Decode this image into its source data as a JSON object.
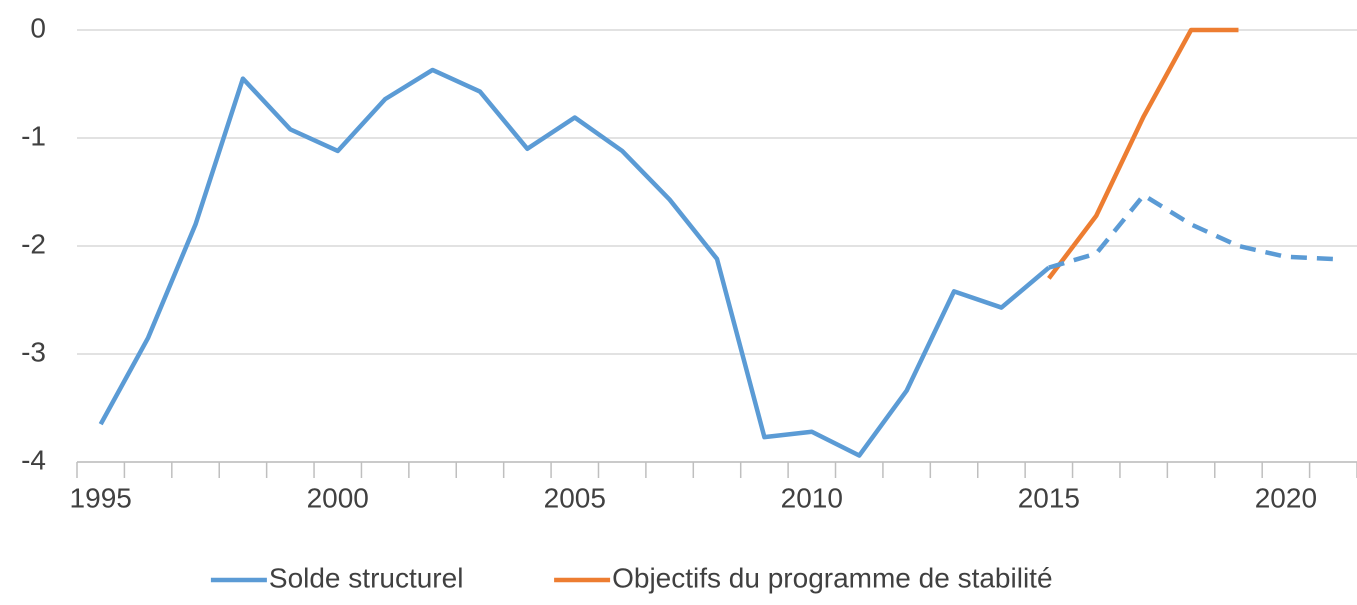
{
  "chart_data": {
    "type": "line",
    "categories": [
      "1995",
      null,
      null,
      null,
      null,
      "2000",
      null,
      null,
      null,
      null,
      "2005",
      null,
      null,
      null,
      null,
      "2010",
      null,
      null,
      null,
      null,
      "2015",
      null,
      null,
      null,
      null,
      "2020",
      null
    ],
    "series": [
      {
        "name": "Solde structurel",
        "color": "#5b9bd5",
        "values": [
          -3.65,
          -2.85,
          -1.8,
          -0.45,
          -0.92,
          -1.12,
          -0.64,
          -0.37,
          -0.57,
          -1.1,
          -0.81,
          -1.12,
          -1.57,
          -2.12,
          -3.77,
          -3.72,
          -3.94,
          -3.34,
          -2.42,
          -2.57,
          -2.2,
          null,
          null,
          null,
          null,
          null,
          null
        ]
      },
      {
        "name": "Objectifs du programme de stabilité",
        "color": "#ed7d31",
        "values": [
          null,
          null,
          null,
          null,
          null,
          null,
          null,
          null,
          null,
          null,
          null,
          null,
          null,
          null,
          null,
          null,
          null,
          null,
          null,
          null,
          -2.3,
          -1.72,
          -0.8,
          0,
          0,
          null,
          null
        ]
      },
      {
        "color": "#5b9bd5",
        "dashed": true,
        "values": [
          null,
          null,
          null,
          null,
          null,
          null,
          null,
          null,
          null,
          null,
          null,
          null,
          null,
          null,
          null,
          null,
          null,
          null,
          null,
          null,
          -2.2,
          -2.07,
          -1.53,
          -1.8,
          -2.0,
          -2.1,
          -2.12
        ]
      }
    ],
    "ylim": [
      -4,
      0
    ],
    "yticks": [
      0,
      -1,
      -2,
      -3,
      -4
    ],
    "grid": true,
    "legend": "bottom"
  }
}
